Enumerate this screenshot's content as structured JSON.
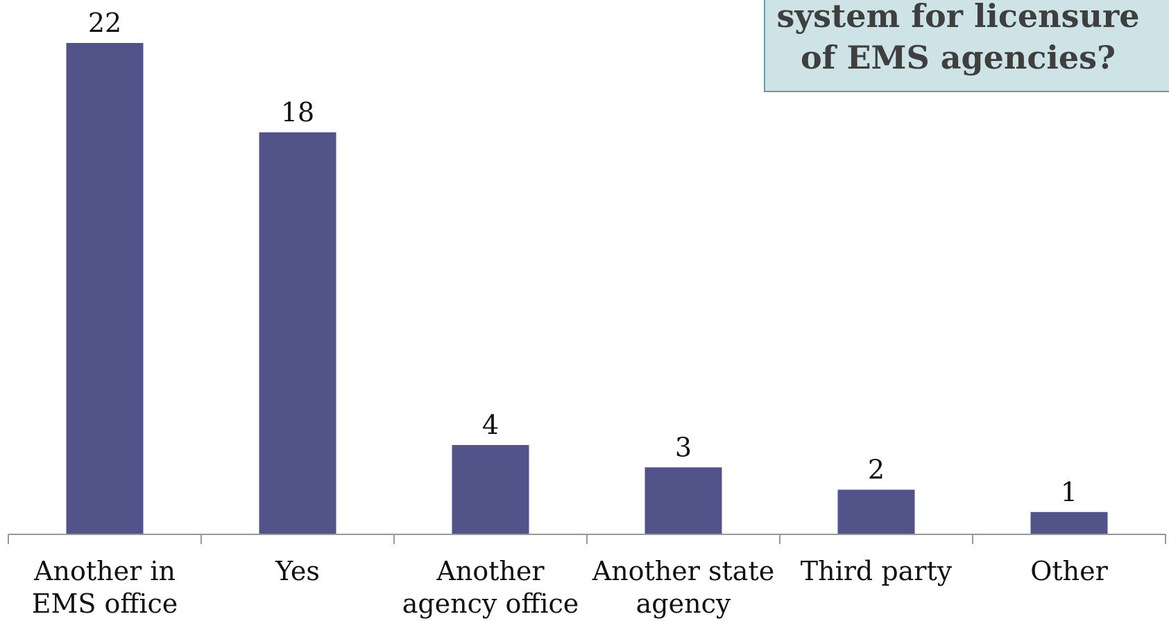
{
  "chart_data": {
    "type": "bar",
    "title": "system for licensure\nof EMS agencies?",
    "categories": [
      [
        "Another in",
        "EMS office"
      ],
      [
        "Yes"
      ],
      [
        "Another",
        "agency office"
      ],
      [
        "Another state",
        "agency"
      ],
      [
        "Third party"
      ],
      [
        "Other"
      ]
    ],
    "values": [
      22,
      18,
      4,
      3,
      2,
      1
    ],
    "ylim": [
      0,
      22
    ],
    "bar_color": "#525388",
    "axis_color": "#999999",
    "grid": false,
    "legend": false
  }
}
